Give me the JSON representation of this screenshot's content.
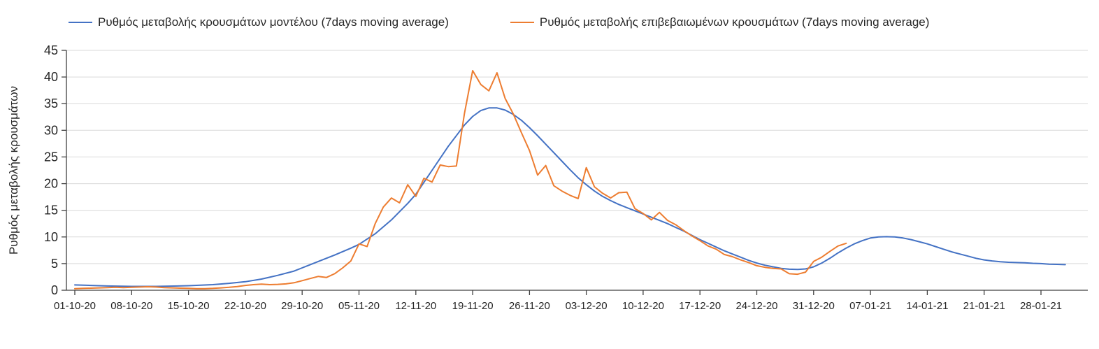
{
  "chart_data": {
    "type": "line",
    "title": "",
    "xlabel": "",
    "ylabel": "Ρυθμός μεταβολής κρουσμάτων",
    "ylim": [
      0,
      45
    ],
    "yticks": [
      0,
      5,
      10,
      15,
      20,
      25,
      30,
      35,
      40,
      45
    ],
    "grid": "horizontal",
    "legend_position": "top",
    "x_unit": "date",
    "x_ticks": [
      {
        "day": 0,
        "label": "01-10-20"
      },
      {
        "day": 7,
        "label": "08-10-20"
      },
      {
        "day": 14,
        "label": "15-10-20"
      },
      {
        "day": 21,
        "label": "22-10-20"
      },
      {
        "day": 28,
        "label": "29-10-20"
      },
      {
        "day": 35,
        "label": "05-11-20"
      },
      {
        "day": 42,
        "label": "12-11-20"
      },
      {
        "day": 49,
        "label": "19-11-20"
      },
      {
        "day": 56,
        "label": "26-11-20"
      },
      {
        "day": 63,
        "label": "03-12-20"
      },
      {
        "day": 70,
        "label": "10-12-20"
      },
      {
        "day": 77,
        "label": "17-12-20"
      },
      {
        "day": 84,
        "label": "24-12-20"
      },
      {
        "day": 91,
        "label": "31-12-20"
      },
      {
        "day": 98,
        "label": "07-01-21"
      },
      {
        "day": 105,
        "label": "14-01-21"
      },
      {
        "day": 112,
        "label": "21-01-21"
      },
      {
        "day": 119,
        "label": "28-01-21"
      }
    ],
    "colors": {
      "grid": "#D9D9D9",
      "axis": "#404040",
      "text": "#262626"
    },
    "series": [
      {
        "name": "Ρυθμός μεταβολής κρουσμάτων μοντέλου (7days moving average)",
        "color": "#4472C4",
        "points": [
          [
            0,
            1.0
          ],
          [
            2,
            0.9
          ],
          [
            4,
            0.8
          ],
          [
            7,
            0.72
          ],
          [
            10,
            0.72
          ],
          [
            14,
            0.85
          ],
          [
            17,
            1.05
          ],
          [
            19,
            1.3
          ],
          [
            21,
            1.6
          ],
          [
            23,
            2.1
          ],
          [
            25,
            2.8
          ],
          [
            27,
            3.6
          ],
          [
            28,
            4.2
          ],
          [
            30,
            5.4
          ],
          [
            32,
            6.6
          ],
          [
            34,
            7.9
          ],
          [
            35,
            8.6
          ],
          [
            37,
            10.6
          ],
          [
            39,
            13.2
          ],
          [
            41,
            16.3
          ],
          [
            42,
            18.0
          ],
          [
            44,
            22.5
          ],
          [
            46,
            27.0
          ],
          [
            48,
            31.0
          ],
          [
            49,
            32.6
          ],
          [
            50,
            33.7
          ],
          [
            51,
            34.2
          ],
          [
            52,
            34.2
          ],
          [
            53,
            33.8
          ],
          [
            54,
            33.0
          ],
          [
            55,
            31.9
          ],
          [
            56,
            30.5
          ],
          [
            57,
            29.0
          ],
          [
            58,
            27.4
          ],
          [
            59,
            25.8
          ],
          [
            60,
            24.2
          ],
          [
            61,
            22.6
          ],
          [
            62,
            21.1
          ],
          [
            63,
            19.8
          ],
          [
            64,
            18.6
          ],
          [
            65,
            17.6
          ],
          [
            66,
            16.8
          ],
          [
            67,
            16.1
          ],
          [
            68,
            15.5
          ],
          [
            69,
            14.9
          ],
          [
            70,
            14.3
          ],
          [
            71,
            13.7
          ],
          [
            72,
            13.1
          ],
          [
            73,
            12.5
          ],
          [
            74,
            11.8
          ],
          [
            75,
            11.1
          ],
          [
            76,
            10.3
          ],
          [
            77,
            9.5
          ],
          [
            78,
            8.8
          ],
          [
            79,
            8.1
          ],
          [
            80,
            7.4
          ],
          [
            81,
            6.8
          ],
          [
            82,
            6.2
          ],
          [
            83,
            5.6
          ],
          [
            84,
            5.1
          ],
          [
            85,
            4.7
          ],
          [
            86,
            4.4
          ],
          [
            87,
            4.1
          ],
          [
            88,
            3.95
          ],
          [
            89,
            3.9
          ],
          [
            90,
            4.0
          ],
          [
            91,
            4.4
          ],
          [
            92,
            5.1
          ],
          [
            93,
            6.0
          ],
          [
            94,
            7.0
          ],
          [
            95,
            7.9
          ],
          [
            96,
            8.7
          ],
          [
            97,
            9.3
          ],
          [
            98,
            9.8
          ],
          [
            99,
            10.0
          ],
          [
            100,
            10.05
          ],
          [
            101,
            10.0
          ],
          [
            102,
            9.8
          ],
          [
            103,
            9.5
          ],
          [
            104,
            9.1
          ],
          [
            105,
            8.7
          ],
          [
            106,
            8.2
          ],
          [
            107,
            7.7
          ],
          [
            108,
            7.2
          ],
          [
            109,
            6.8
          ],
          [
            110,
            6.4
          ],
          [
            111,
            6.0
          ],
          [
            112,
            5.7
          ],
          [
            113,
            5.5
          ],
          [
            114,
            5.35
          ],
          [
            115,
            5.25
          ],
          [
            116,
            5.2
          ],
          [
            117,
            5.15
          ],
          [
            118,
            5.05
          ],
          [
            119,
            5.0
          ],
          [
            120,
            4.9
          ],
          [
            121,
            4.85
          ],
          [
            122,
            4.8
          ]
        ]
      },
      {
        "name": "Ρυθμός μεταβολής επιβεβαιωμένων κρουσμάτων (7days moving average)",
        "color": "#ED7D31",
        "points": [
          [
            0,
            0.3
          ],
          [
            1,
            0.35
          ],
          [
            2,
            0.4
          ],
          [
            3,
            0.45
          ],
          [
            4,
            0.5
          ],
          [
            5,
            0.55
          ],
          [
            6,
            0.5
          ],
          [
            7,
            0.55
          ],
          [
            8,
            0.6
          ],
          [
            9,
            0.65
          ],
          [
            10,
            0.6
          ],
          [
            11,
            0.5
          ],
          [
            12,
            0.45
          ],
          [
            13,
            0.4
          ],
          [
            14,
            0.35
          ],
          [
            15,
            0.3
          ],
          [
            16,
            0.3
          ],
          [
            17,
            0.35
          ],
          [
            18,
            0.45
          ],
          [
            19,
            0.55
          ],
          [
            20,
            0.7
          ],
          [
            21,
            0.9
          ],
          [
            22,
            1.05
          ],
          [
            23,
            1.15
          ],
          [
            24,
            1.05
          ],
          [
            25,
            1.1
          ],
          [
            26,
            1.2
          ],
          [
            27,
            1.4
          ],
          [
            28,
            1.8
          ],
          [
            29,
            2.2
          ],
          [
            30,
            2.6
          ],
          [
            31,
            2.4
          ],
          [
            32,
            3.1
          ],
          [
            33,
            4.2
          ],
          [
            34,
            5.5
          ],
          [
            35,
            8.7
          ],
          [
            36,
            8.2
          ],
          [
            37,
            12.5
          ],
          [
            38,
            15.6
          ],
          [
            39,
            17.3
          ],
          [
            40,
            16.4
          ],
          [
            41,
            19.8
          ],
          [
            42,
            17.6
          ],
          [
            43,
            21.0
          ],
          [
            44,
            20.3
          ],
          [
            45,
            23.5
          ],
          [
            46,
            23.2
          ],
          [
            47,
            23.3
          ],
          [
            48,
            33.2
          ],
          [
            49,
            41.2
          ],
          [
            50,
            38.6
          ],
          [
            51,
            37.4
          ],
          [
            52,
            40.8
          ],
          [
            53,
            36.0
          ],
          [
            54,
            33.1
          ],
          [
            55,
            29.6
          ],
          [
            56,
            26.2
          ],
          [
            57,
            21.6
          ],
          [
            58,
            23.4
          ],
          [
            59,
            19.6
          ],
          [
            60,
            18.6
          ],
          [
            61,
            17.8
          ],
          [
            62,
            17.2
          ],
          [
            63,
            23.0
          ],
          [
            64,
            19.4
          ],
          [
            65,
            18.2
          ],
          [
            66,
            17.3
          ],
          [
            67,
            18.3
          ],
          [
            68,
            18.4
          ],
          [
            69,
            15.3
          ],
          [
            70,
            14.4
          ],
          [
            71,
            13.2
          ],
          [
            72,
            14.6
          ],
          [
            73,
            13.1
          ],
          [
            74,
            12.3
          ],
          [
            75,
            11.2
          ],
          [
            76,
            10.2
          ],
          [
            77,
            9.3
          ],
          [
            78,
            8.3
          ],
          [
            79,
            7.7
          ],
          [
            80,
            6.7
          ],
          [
            81,
            6.3
          ],
          [
            82,
            5.7
          ],
          [
            83,
            5.2
          ],
          [
            84,
            4.6
          ],
          [
            85,
            4.3
          ],
          [
            86,
            4.1
          ],
          [
            87,
            4.0
          ],
          [
            88,
            3.1
          ],
          [
            89,
            3.0
          ],
          [
            90,
            3.4
          ],
          [
            91,
            5.4
          ],
          [
            92,
            6.2
          ],
          [
            93,
            7.3
          ],
          [
            94,
            8.3
          ],
          [
            95,
            8.8
          ]
        ]
      }
    ]
  }
}
